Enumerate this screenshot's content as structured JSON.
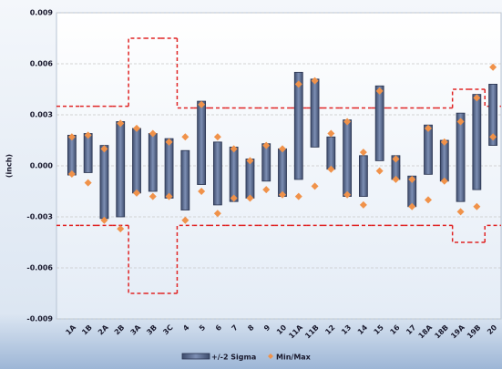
{
  "chart_data": {
    "type": "range-bar",
    "y_label": "(inch)",
    "categories": [
      "1A",
      "1B",
      "2A",
      "2B",
      "3A",
      "3B",
      "3C",
      "4",
      "5",
      "6",
      "7",
      "8",
      "9",
      "10",
      "11A",
      "11B",
      "12",
      "13",
      "14",
      "15",
      "16",
      "17",
      "18A",
      "18B",
      "19A",
      "19B",
      "20"
    ],
    "ylim": [
      -0.009,
      0.009
    ],
    "yticks": [
      -0.009,
      -0.006,
      -0.003,
      {
        "value": 0,
        "label": "0.000"
      },
      0.003,
      0.006,
      0.009
    ],
    "grid": true,
    "series": [
      {
        "name": "+/-2 Sigma",
        "color": "#56688e",
        "low": [
          -0.00054,
          -0.0004,
          -0.0031,
          -0.003,
          -0.0016,
          -0.0015,
          -0.0019,
          -0.0026,
          -0.0011,
          -0.0023,
          -0.0021,
          -0.0019,
          -0.0009,
          -0.0018,
          -0.0008,
          0.0011,
          -0.0002,
          -0.0018,
          -0.0018,
          0.0003,
          -0.0008,
          -0.0024,
          -0.0005,
          -0.0009,
          -0.0021,
          -0.0014,
          0.0012
        ],
        "high": [
          0.0018,
          0.0019,
          0.0012,
          0.0026,
          0.0022,
          0.0019,
          0.0016,
          0.0009,
          0.0038,
          0.0014,
          0.0011,
          0.0004,
          0.0013,
          0.001,
          0.0055,
          0.0051,
          0.0017,
          0.0027,
          0.0006,
          0.0047,
          0.0006,
          -0.0006,
          0.0024,
          0.0015,
          0.0031,
          0.0042,
          0.0048
        ]
      },
      {
        "name": "Min/Max",
        "color": "#f0924a",
        "min": [
          -0.00048,
          -0.001,
          -0.0032,
          -0.0037,
          -0.0016,
          -0.0018,
          -0.0018,
          -0.0032,
          -0.0015,
          -0.0028,
          -0.0019,
          -0.0019,
          -0.0014,
          -0.0017,
          -0.0018,
          -0.0012,
          -0.0002,
          -0.0017,
          -0.0023,
          -0.0003,
          -0.0008,
          -0.0024,
          -0.002,
          -0.0009,
          -0.0027,
          -0.0024,
          0.0017
        ],
        "max": [
          0.0017,
          0.0018,
          0.001,
          0.0025,
          0.0022,
          0.0019,
          0.0014,
          0.0017,
          0.0036,
          0.0017,
          0.001,
          0.0003,
          0.0012,
          0.001,
          0.0048,
          0.005,
          0.0019,
          0.0026,
          0.0008,
          0.0044,
          0.0004,
          -0.0008,
          0.0022,
          0.0014,
          0.0026,
          0.004,
          0.0058
        ]
      }
    ],
    "limits": {
      "color": "#e02424",
      "upper": [
        0.0035,
        0.0035,
        0.0035,
        0.0035,
        0.0075,
        0.0075,
        0.0075,
        0.0034,
        0.0034,
        0.0034,
        0.0034,
        0.0034,
        0.0034,
        0.0034,
        0.0034,
        0.0034,
        0.0034,
        0.0034,
        0.0034,
        0.0034,
        0.0034,
        0.0034,
        0.0034,
        0.0034,
        0.0045,
        0.0045,
        0.0035
      ],
      "lower": [
        -0.0035,
        -0.0035,
        -0.0035,
        -0.0035,
        -0.0075,
        -0.0075,
        -0.0075,
        -0.0035,
        -0.0035,
        -0.0035,
        -0.0035,
        -0.0035,
        -0.0035,
        -0.0035,
        -0.0035,
        -0.0035,
        -0.0035,
        -0.0035,
        -0.0035,
        -0.0035,
        -0.0035,
        -0.0035,
        -0.0035,
        -0.0035,
        -0.0045,
        -0.0045,
        -0.0035
      ]
    }
  }
}
